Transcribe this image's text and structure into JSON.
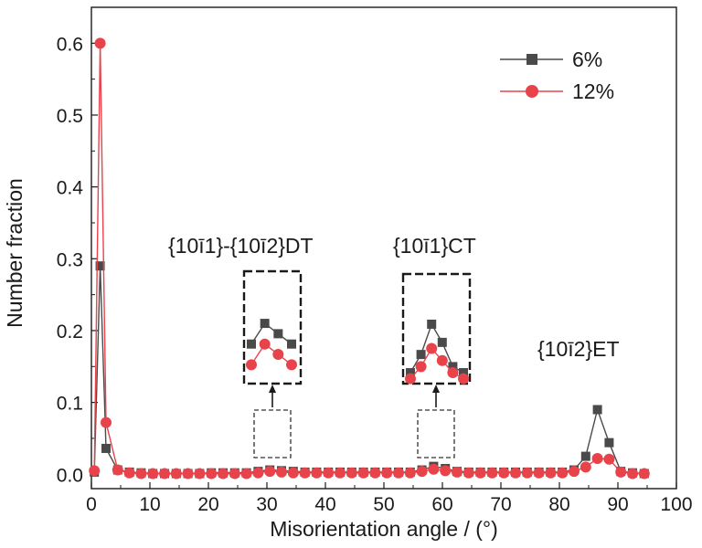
{
  "chart_data": {
    "type": "line",
    "xlabel": "Misorientation angle / (°)",
    "ylabel": "Number fraction",
    "xlim": [
      0,
      100
    ],
    "ylim": [
      -0.02,
      0.65
    ],
    "x_ticks": [
      "0",
      "10",
      "20",
      "30",
      "40",
      "50",
      "60",
      "70",
      "80",
      "90",
      "100"
    ],
    "y_ticks": [
      "0.0",
      "0.1",
      "0.2",
      "0.3",
      "0.4",
      "0.5",
      "0.6"
    ],
    "grid": false,
    "legend_position": "top-right",
    "annotations": {
      "dt": "{10ī1}-{10ī2}DT",
      "ct": "{10ī1}CT",
      "et": "{10ī2}ET"
    },
    "series": [
      {
        "name": "6%",
        "color": "#4a4a4a",
        "marker": "square",
        "x": [
          0.5,
          1.5,
          2.5,
          4.5,
          6.5,
          8.5,
          10.5,
          12.5,
          14.5,
          16.5,
          18.5,
          20.5,
          22.5,
          24.5,
          26.5,
          28.5,
          30.5,
          32.5,
          34.5,
          36.5,
          38.5,
          40.5,
          42.5,
          44.5,
          46.5,
          48.5,
          50.5,
          52.5,
          54.5,
          56.5,
          58.5,
          60.5,
          62.5,
          64.5,
          66.5,
          68.5,
          70.5,
          72.5,
          74.5,
          76.5,
          78.5,
          80.5,
          82.5,
          84.5,
          86.5,
          88.5,
          90.5,
          92.5,
          94.5
        ],
        "values": [
          0.003,
          0.29,
          0.036,
          0.006,
          0.003,
          0.002,
          0.001,
          0.001,
          0.001,
          0.001,
          0.001,
          0.002,
          0.002,
          0.002,
          0.002,
          0.004,
          0.006,
          0.005,
          0.004,
          0.003,
          0.003,
          0.003,
          0.003,
          0.003,
          0.003,
          0.003,
          0.003,
          0.003,
          0.003,
          0.006,
          0.011,
          0.008,
          0.004,
          0.003,
          0.003,
          0.003,
          0.003,
          0.003,
          0.003,
          0.003,
          0.003,
          0.003,
          0.006,
          0.025,
          0.09,
          0.044,
          0.004,
          0.002,
          0.001
        ]
      },
      {
        "name": "12%",
        "color": "#e8434a",
        "marker": "circle",
        "x": [
          0.5,
          1.5,
          2.5,
          4.5,
          6.5,
          8.5,
          10.5,
          12.5,
          14.5,
          16.5,
          18.5,
          20.5,
          22.5,
          24.5,
          26.5,
          28.5,
          30.5,
          32.5,
          34.5,
          36.5,
          38.5,
          40.5,
          42.5,
          44.5,
          46.5,
          48.5,
          50.5,
          52.5,
          54.5,
          56.5,
          58.5,
          60.5,
          62.5,
          64.5,
          66.5,
          68.5,
          70.5,
          72.5,
          74.5,
          76.5,
          78.5,
          80.5,
          82.5,
          84.5,
          86.5,
          88.5,
          90.5,
          92.5,
          94.5
        ],
        "values": [
          0.005,
          0.6,
          0.072,
          0.006,
          0.002,
          0.001,
          0.001,
          0.001,
          0.001,
          0.001,
          0.001,
          0.001,
          0.001,
          0.001,
          0.001,
          0.002,
          0.004,
          0.003,
          0.002,
          0.002,
          0.002,
          0.002,
          0.002,
          0.002,
          0.002,
          0.002,
          0.002,
          0.002,
          0.002,
          0.004,
          0.007,
          0.005,
          0.003,
          0.002,
          0.002,
          0.002,
          0.002,
          0.002,
          0.002,
          0.002,
          0.002,
          0.002,
          0.004,
          0.01,
          0.022,
          0.021,
          0.003,
          0.001,
          0.001
        ]
      }
    ]
  }
}
